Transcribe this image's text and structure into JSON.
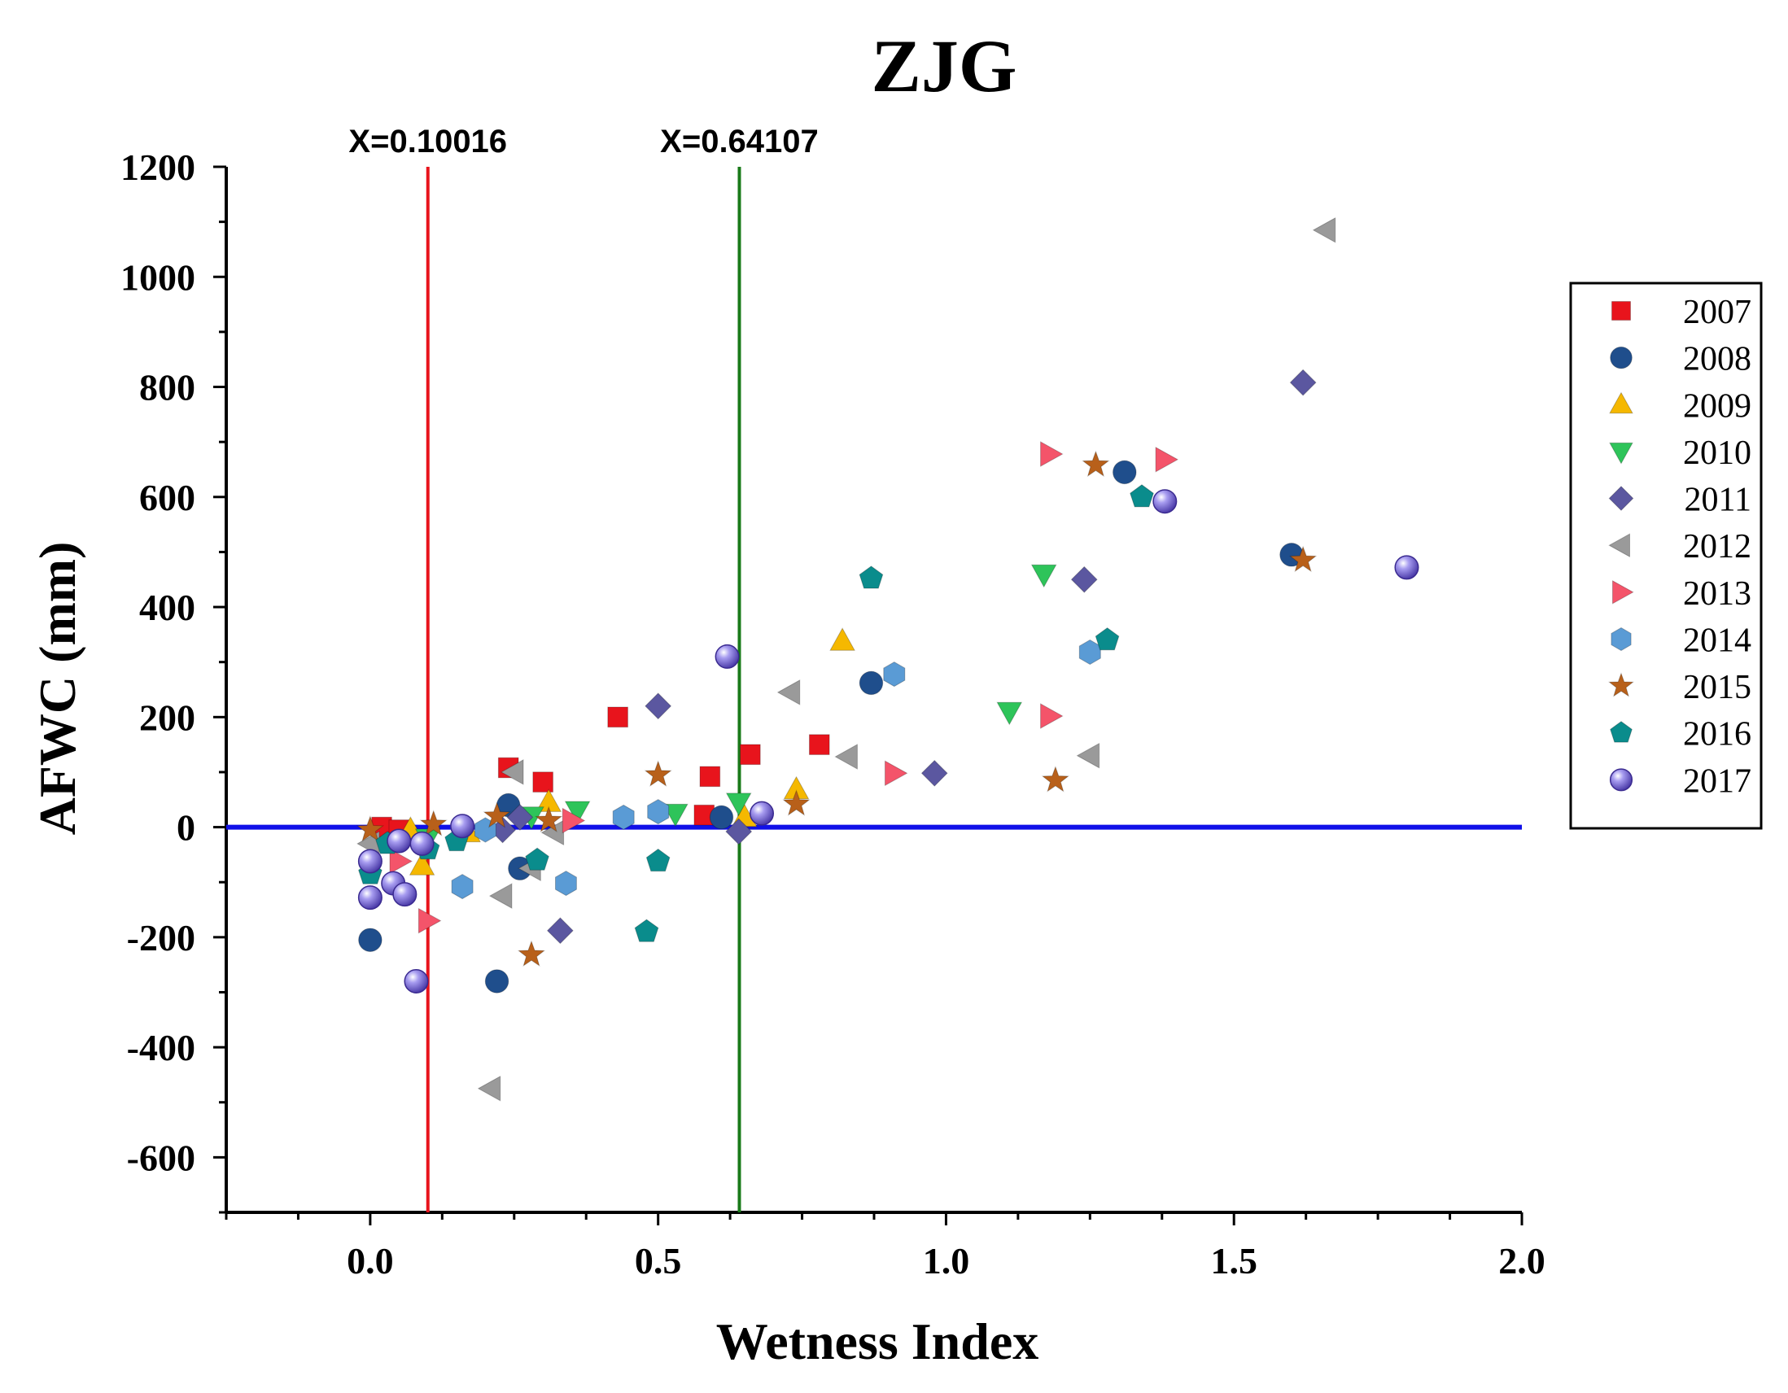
{
  "chart_data": {
    "type": "scatter",
    "title": "ZJG",
    "xlabel": "Wetness Index",
    "ylabel": "AFWC (mm)",
    "xlim": [
      -0.25,
      2.0
    ],
    "ylim": [
      -700,
      1200
    ],
    "x_ticks": [
      0.0,
      0.5,
      1.0,
      1.5,
      2.0
    ],
    "x_tick_labels": [
      "0.0",
      "0.5",
      "1.0",
      "1.5",
      "2.0"
    ],
    "y_ticks": [
      1200,
      1000,
      800,
      600,
      400,
      200,
      0,
      -200,
      -400,
      -600
    ],
    "y_tick_labels": [
      "1200",
      "1000",
      "800",
      "600",
      "400",
      "200",
      "0",
      "-200",
      "-400",
      "-600"
    ],
    "reference_lines": [
      {
        "orientation": "vertical",
        "value": 0.10016,
        "label": "X=0.10016",
        "color": "#e8141c"
      },
      {
        "orientation": "vertical",
        "value": 0.64107,
        "label": "X=0.64107",
        "color": "#1a7a1a"
      },
      {
        "orientation": "horizontal",
        "value": 0,
        "label": "",
        "color": "#1010e8"
      }
    ],
    "legend_position": "right",
    "series": [
      {
        "name": "2007",
        "marker": "square",
        "color": "#e8141c",
        "points": [
          [
            0.02,
            0
          ],
          [
            0.05,
            -5
          ],
          [
            0.24,
            108
          ],
          [
            0.3,
            82
          ],
          [
            0.43,
            200
          ],
          [
            0.58,
            22
          ],
          [
            0.59,
            92
          ],
          [
            0.66,
            132
          ],
          [
            0.78,
            150
          ]
        ]
      },
      {
        "name": "2008",
        "marker": "circle",
        "color": "#1f4e8c",
        "points": [
          [
            0.0,
            -205
          ],
          [
            0.22,
            -280
          ],
          [
            0.24,
            40
          ],
          [
            0.26,
            -75
          ],
          [
            0.61,
            18
          ],
          [
            0.87,
            262
          ],
          [
            1.31,
            645
          ],
          [
            1.6,
            495
          ]
        ]
      },
      {
        "name": "2009",
        "marker": "triangle-up",
        "color": "#f5b800",
        "points": [
          [
            0.07,
            -5
          ],
          [
            0.09,
            -70
          ],
          [
            0.17,
            -10
          ],
          [
            0.31,
            45
          ],
          [
            0.65,
            18
          ],
          [
            0.74,
            68
          ],
          [
            0.82,
            338
          ]
        ]
      },
      {
        "name": "2010",
        "marker": "triangle-down",
        "color": "#2ec45a",
        "points": [
          [
            0.1,
            -20
          ],
          [
            0.28,
            20
          ],
          [
            0.36,
            30
          ],
          [
            0.53,
            25
          ],
          [
            0.64,
            45
          ],
          [
            1.11,
            210
          ],
          [
            1.17,
            460
          ]
        ]
      },
      {
        "name": "2011",
        "marker": "diamond",
        "color": "#5b57a0",
        "points": [
          [
            0.23,
            -5
          ],
          [
            0.26,
            18
          ],
          [
            0.33,
            -188
          ],
          [
            0.5,
            220
          ],
          [
            0.64,
            -8
          ],
          [
            0.98,
            98
          ],
          [
            1.24,
            450
          ],
          [
            1.62,
            808
          ]
        ]
      },
      {
        "name": "2012",
        "marker": "triangle-left",
        "color": "#9a9a9a",
        "points": [
          [
            0.0,
            -30
          ],
          [
            0.21,
            -475
          ],
          [
            0.23,
            -125
          ],
          [
            0.25,
            100
          ],
          [
            0.28,
            -75
          ],
          [
            0.32,
            -10
          ],
          [
            0.73,
            245
          ],
          [
            0.83,
            128
          ],
          [
            1.25,
            130
          ],
          [
            1.66,
            1085
          ]
        ]
      },
      {
        "name": "2013",
        "marker": "triangle-right",
        "color": "#f4546a",
        "points": [
          [
            0.05,
            -62
          ],
          [
            0.1,
            -170
          ],
          [
            0.35,
            12
          ],
          [
            0.91,
            98
          ],
          [
            1.18,
            678
          ],
          [
            1.18,
            202
          ],
          [
            1.38,
            668
          ]
        ]
      },
      {
        "name": "2014",
        "marker": "hexagon",
        "color": "#5a9bd5",
        "points": [
          [
            0.16,
            -108
          ],
          [
            0.2,
            -5
          ],
          [
            0.34,
            -102
          ],
          [
            0.44,
            18
          ],
          [
            0.5,
            28
          ],
          [
            0.91,
            278
          ],
          [
            1.25,
            318
          ]
        ]
      },
      {
        "name": "2015",
        "marker": "star",
        "color": "#b8601a",
        "points": [
          [
            0.0,
            -5
          ],
          [
            0.11,
            5
          ],
          [
            0.22,
            20
          ],
          [
            0.28,
            -232
          ],
          [
            0.31,
            12
          ],
          [
            0.5,
            95
          ],
          [
            0.74,
            42
          ],
          [
            1.19,
            85
          ],
          [
            1.26,
            658
          ],
          [
            1.62,
            485
          ]
        ]
      },
      {
        "name": "2016",
        "marker": "pentagon",
        "color": "#0a8c8c",
        "points": [
          [
            0.0,
            -85
          ],
          [
            0.03,
            -30
          ],
          [
            0.1,
            -40
          ],
          [
            0.15,
            -25
          ],
          [
            0.29,
            -60
          ],
          [
            0.48,
            -190
          ],
          [
            0.5,
            -62
          ],
          [
            0.87,
            452
          ],
          [
            1.28,
            340
          ],
          [
            1.34,
            600
          ]
        ]
      },
      {
        "name": "2017",
        "marker": "sphere",
        "color": "#6a5acd",
        "points": [
          [
            0.0,
            -128
          ],
          [
            0.0,
            -62
          ],
          [
            0.04,
            -102
          ],
          [
            0.05,
            -25
          ],
          [
            0.06,
            -122
          ],
          [
            0.08,
            -280
          ],
          [
            0.09,
            -30
          ],
          [
            0.16,
            2
          ],
          [
            0.62,
            310
          ],
          [
            0.68,
            25
          ],
          [
            1.38,
            592
          ],
          [
            1.8,
            472
          ]
        ]
      }
    ]
  }
}
